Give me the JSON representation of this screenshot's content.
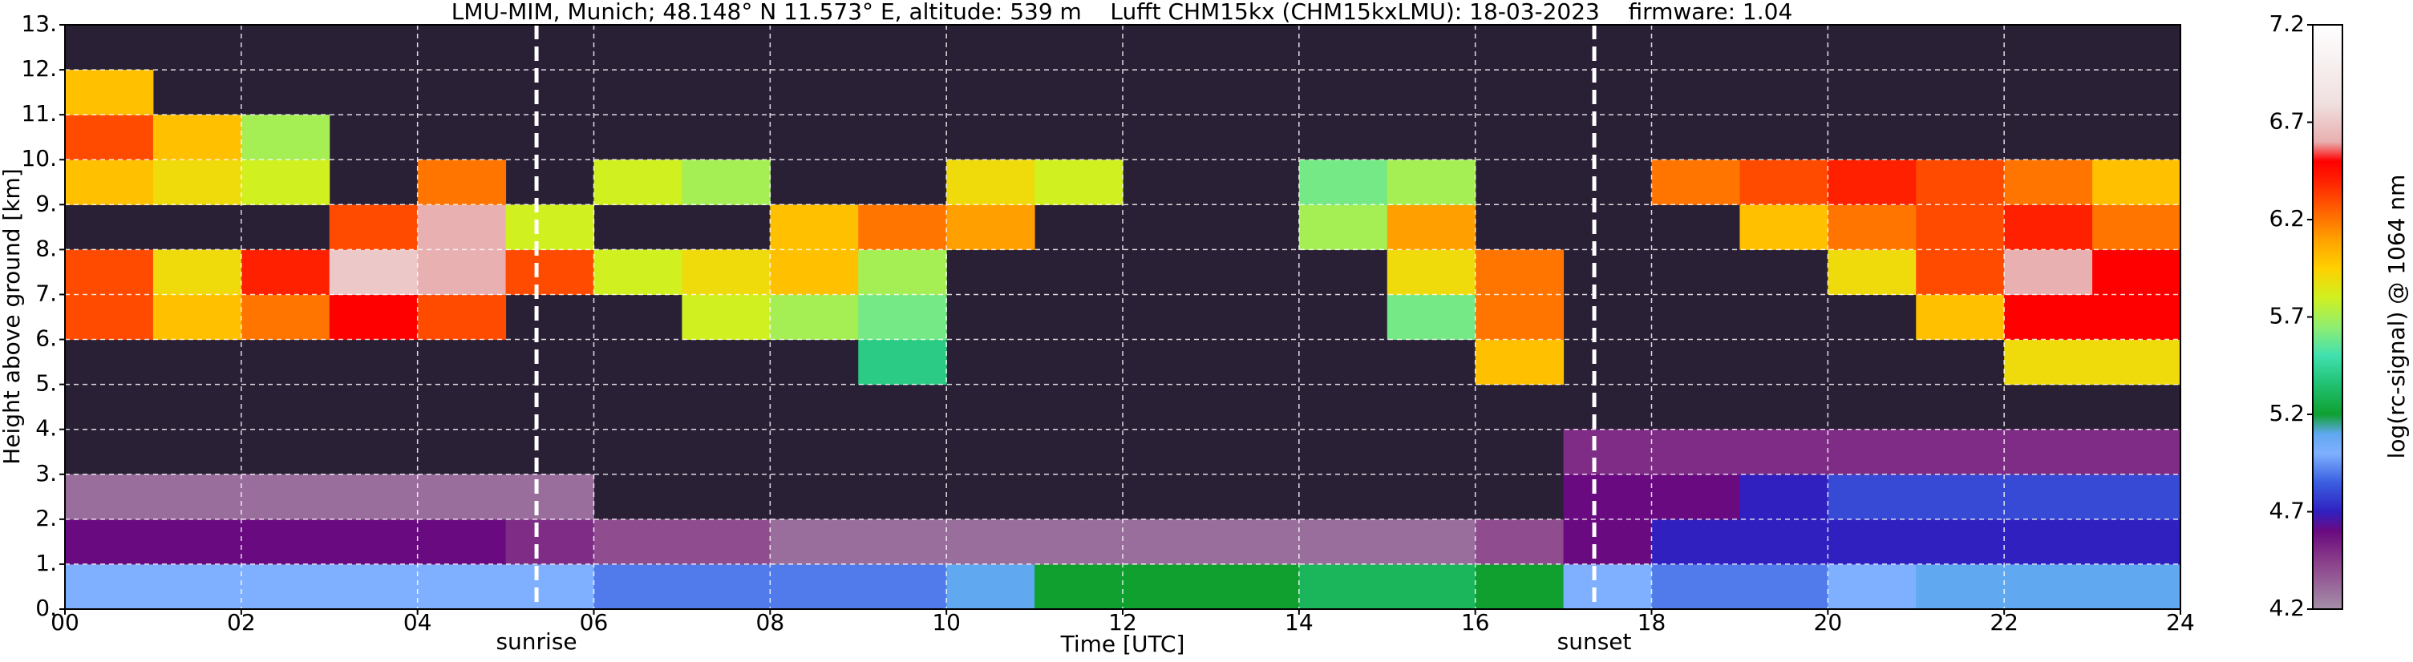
{
  "chart_data": {
    "type": "heatmap",
    "title": "LMU-MIM, Munich; 48.148° N 11.573° E, altitude: 539 m    Lufft CHM15kx (CHM15kxLMU): 18-03-2023    firmware: 1.04",
    "x_label": "Time [UTC]",
    "y_label": "Height above ground [km]",
    "colorbar_label": "log(rc-signal) @ 1064 nm",
    "xlim": [
      0,
      24
    ],
    "ylim": [
      0,
      13
    ],
    "clim": [
      4.2,
      7.2
    ],
    "xticks": [
      {
        "value": 0,
        "label": "00"
      },
      {
        "value": 2,
        "label": "02"
      },
      {
        "value": 4,
        "label": "04"
      },
      {
        "value": 6,
        "label": "06"
      },
      {
        "value": 8,
        "label": "08"
      },
      {
        "value": 10,
        "label": "10"
      },
      {
        "value": 12,
        "label": "12"
      },
      {
        "value": 14,
        "label": "14"
      },
      {
        "value": 16,
        "label": "16"
      },
      {
        "value": 18,
        "label": "18"
      },
      {
        "value": 20,
        "label": "20"
      },
      {
        "value": 22,
        "label": "22"
      },
      {
        "value": 24,
        "label": "24"
      }
    ],
    "yticks": [
      {
        "value": 0,
        "label": "0."
      },
      {
        "value": 1,
        "label": "1."
      },
      {
        "value": 2,
        "label": "2."
      },
      {
        "value": 3,
        "label": "3."
      },
      {
        "value": 4,
        "label": "4."
      },
      {
        "value": 5,
        "label": "5."
      },
      {
        "value": 6,
        "label": "6."
      },
      {
        "value": 7,
        "label": "7."
      },
      {
        "value": 8,
        "label": "8."
      },
      {
        "value": 9,
        "label": "9."
      },
      {
        "value": 10,
        "label": "10."
      },
      {
        "value": 11,
        "label": "11."
      },
      {
        "value": 12,
        "label": "12."
      },
      {
        "value": 13,
        "label": "13."
      }
    ],
    "cticks": [
      4.2,
      4.7,
      5.2,
      5.7,
      6.2,
      6.7,
      7.2
    ],
    "grid": true,
    "vlines": [
      {
        "x": 5.35,
        "label": "sunrise"
      },
      {
        "x": 17.35,
        "label": "sunset"
      }
    ],
    "colorscale": [
      [
        4.2,
        "#a58fa8"
      ],
      [
        4.45,
        "#8a3d8a"
      ],
      [
        4.6,
        "#6a0a80"
      ],
      [
        4.7,
        "#3020c0"
      ],
      [
        4.85,
        "#3a5fe0"
      ],
      [
        5.0,
        "#7fb0ff"
      ],
      [
        5.1,
        "#60a8f0"
      ],
      [
        5.2,
        "#10a030"
      ],
      [
        5.35,
        "#20c070"
      ],
      [
        5.5,
        "#40e0b0"
      ],
      [
        5.65,
        "#90ee70"
      ],
      [
        5.8,
        "#d0f020"
      ],
      [
        5.95,
        "#ffd000"
      ],
      [
        6.1,
        "#ffa000"
      ],
      [
        6.25,
        "#ff6000"
      ],
      [
        6.4,
        "#ff2000"
      ],
      [
        6.5,
        "#ff0000"
      ],
      [
        6.6,
        "#e8b0b0"
      ],
      [
        6.8,
        "#f0e0e0"
      ],
      [
        7.2,
        "#ffffff"
      ]
    ],
    "z": [
      [
        5.0,
        5.0,
        5.0,
        5.0,
        5.0,
        5.0,
        4.9,
        4.9,
        4.9,
        4.9,
        5.1,
        5.2,
        5.2,
        5.2,
        5.3,
        5.3,
        5.2,
        5.0,
        4.9,
        4.9,
        5.0,
        5.1,
        5.1,
        5.1
      ],
      [
        4.6,
        4.6,
        4.6,
        4.6,
        4.6,
        4.5,
        4.4,
        4.4,
        4.3,
        4.3,
        4.3,
        4.3,
        4.3,
        4.3,
        4.3,
        4.3,
        4.4,
        4.6,
        4.7,
        4.7,
        4.7,
        4.7,
        4.7,
        4.7
      ],
      [
        4.3,
        4.3,
        4.3,
        4.3,
        4.3,
        4.3,
        null,
        null,
        null,
        null,
        null,
        null,
        null,
        null,
        null,
        null,
        null,
        4.6,
        4.6,
        4.7,
        4.8,
        4.8,
        4.8,
        4.8
      ],
      [
        null,
        null,
        null,
        null,
        null,
        null,
        null,
        null,
        null,
        null,
        null,
        null,
        null,
        null,
        null,
        null,
        null,
        4.5,
        4.5,
        4.5,
        4.5,
        4.5,
        4.5,
        4.5
      ],
      [
        null,
        null,
        null,
        null,
        null,
        null,
        null,
        null,
        null,
        null,
        null,
        null,
        null,
        null,
        null,
        null,
        null,
        null,
        null,
        null,
        null,
        null,
        null,
        null
      ],
      [
        null,
        null,
        null,
        null,
        null,
        null,
        null,
        null,
        null,
        5.4,
        null,
        null,
        null,
        null,
        null,
        null,
        6.0,
        null,
        null,
        null,
        null,
        null,
        5.9,
        5.9
      ],
      [
        6.3,
        6.0,
        6.2,
        6.5,
        6.3,
        null,
        null,
        5.8,
        5.7,
        5.6,
        null,
        null,
        null,
        null,
        null,
        5.6,
        6.2,
        null,
        null,
        null,
        null,
        6.0,
        6.5,
        6.5
      ],
      [
        6.3,
        5.9,
        6.4,
        6.7,
        6.6,
        6.3,
        5.8,
        5.9,
        6.0,
        5.7,
        null,
        null,
        null,
        null,
        null,
        5.9,
        6.2,
        null,
        null,
        null,
        5.9,
        6.3,
        6.6,
        6.5
      ],
      [
        null,
        null,
        null,
        6.3,
        6.6,
        5.8,
        null,
        null,
        6.0,
        6.2,
        6.1,
        null,
        null,
        null,
        5.7,
        6.1,
        null,
        null,
        null,
        6.0,
        6.2,
        6.3,
        6.4,
        6.2
      ],
      [
        6.0,
        5.9,
        5.8,
        null,
        6.2,
        null,
        5.8,
        5.7,
        null,
        null,
        5.9,
        5.8,
        null,
        null,
        5.6,
        5.7,
        null,
        null,
        6.2,
        6.3,
        6.4,
        6.3,
        6.2,
        6.0
      ],
      [
        6.3,
        6.0,
        5.7,
        null,
        null,
        null,
        null,
        null,
        null,
        null,
        null,
        null,
        null,
        null,
        null,
        null,
        null,
        null,
        null,
        null,
        null,
        null,
        null,
        null
      ],
      [
        6.0,
        null,
        null,
        null,
        null,
        null,
        null,
        null,
        null,
        null,
        null,
        null,
        null,
        null,
        null,
        null,
        null,
        null,
        null,
        null,
        null,
        null,
        null,
        null
      ],
      [
        null,
        null,
        null,
        null,
        null,
        null,
        null,
        null,
        null,
        null,
        null,
        null,
        null,
        null,
        null,
        null,
        null,
        null,
        null,
        null,
        null,
        null,
        null,
        null
      ]
    ]
  }
}
